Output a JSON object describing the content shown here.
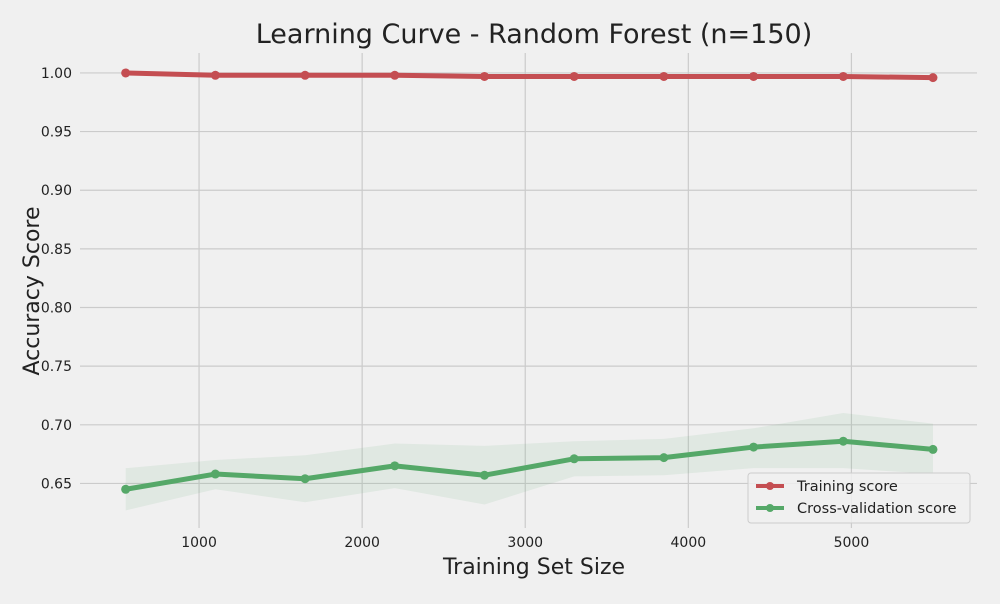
{
  "chart_data": {
    "type": "line",
    "title": "Learning Curve - Random Forest (n=150)",
    "xlabel": "Training Set Size",
    "ylabel": "Accuracy Score",
    "xlim": [
      270,
      5770
    ],
    "ylim": [
      0.612,
      1.017
    ],
    "xticks": [
      1000,
      2000,
      3000,
      4000,
      5000
    ],
    "xtick_labels": [
      "1000",
      "2000",
      "3000",
      "4000",
      "5000"
    ],
    "yticks": [
      0.65,
      0.7,
      0.75,
      0.8,
      0.85,
      0.9,
      0.95,
      1.0
    ],
    "ytick_labels": [
      "0.65",
      "0.70",
      "0.75",
      "0.80",
      "0.85",
      "0.90",
      "0.95",
      "1.00"
    ],
    "grid": true,
    "legend_position": "lower-right",
    "x": [
      550,
      1100,
      1650,
      2200,
      2750,
      3300,
      3850,
      4400,
      4950,
      5500
    ],
    "series": [
      {
        "name": "Training score",
        "color": "#c44e52",
        "values": [
          1.0,
          0.998,
          0.998,
          0.998,
          0.997,
          0.997,
          0.997,
          0.997,
          0.997,
          0.996
        ],
        "lower": [
          0.999,
          0.997,
          0.997,
          0.997,
          0.996,
          0.996,
          0.996,
          0.996,
          0.996,
          0.995
        ],
        "upper": [
          1.0,
          0.999,
          0.999,
          0.999,
          0.998,
          0.998,
          0.998,
          0.998,
          0.998,
          0.998
        ]
      },
      {
        "name": "Cross-validation score",
        "color": "#55a868",
        "values": [
          0.645,
          0.658,
          0.654,
          0.665,
          0.657,
          0.671,
          0.672,
          0.681,
          0.686,
          0.679
        ],
        "lower": [
          0.627,
          0.645,
          0.634,
          0.646,
          0.632,
          0.656,
          0.657,
          0.663,
          0.663,
          0.658
        ],
        "upper": [
          0.663,
          0.67,
          0.674,
          0.684,
          0.682,
          0.686,
          0.688,
          0.697,
          0.71,
          0.701
        ]
      }
    ]
  }
}
